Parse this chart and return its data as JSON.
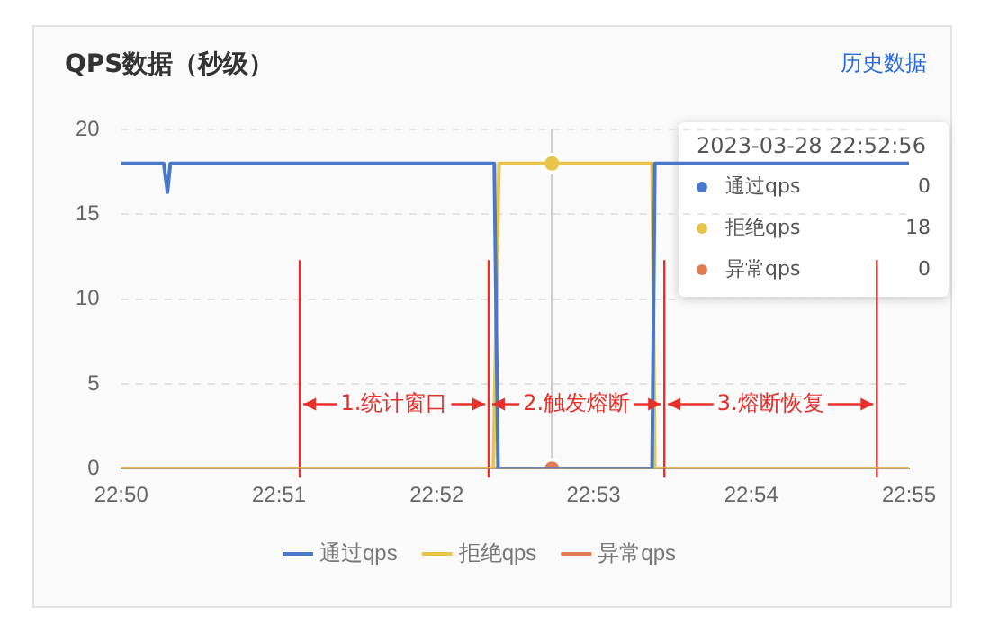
{
  "chart_data": {
    "type": "line",
    "title": "QPS数据（秒级）",
    "xlim": [
      22.8333,
      22.9167
    ],
    "xticks": [
      {
        "value": 22.8333,
        "label": "22:50"
      },
      {
        "value": 22.85,
        "label": "22:51"
      },
      {
        "value": 22.8667,
        "label": "22:52"
      },
      {
        "value": 22.8833,
        "label": "22:53"
      },
      {
        "value": 22.9,
        "label": "22:54"
      },
      {
        "value": 22.9167,
        "label": "22:55"
      }
    ],
    "ylim": [
      0,
      20
    ],
    "yticks": [
      0,
      5,
      10,
      15,
      20
    ],
    "grid": "y",
    "legend": "bottom",
    "marker": "none",
    "line_style": "solid",
    "series": [
      {
        "name": "通过qps",
        "color": "#4a78c8",
        "x": [
          22.8333,
          22.8378,
          22.8382,
          22.8385,
          22.8728,
          22.8732,
          22.8895,
          22.8898,
          22.9167
        ],
        "values": [
          18,
          18,
          16.3,
          18,
          18,
          0,
          0,
          18,
          18
        ]
      },
      {
        "name": "拒绝qps",
        "color": "#e8c54a",
        "x": [
          22.8333,
          22.8727,
          22.8733,
          22.8895,
          22.8898,
          22.9167
        ],
        "values": [
          0,
          0,
          18,
          18,
          0,
          0
        ]
      },
      {
        "name": "异常qps",
        "color": "#e07b54",
        "x": [
          22.8333,
          22.9167
        ],
        "values": [
          0,
          0
        ]
      },
      {
        "type": "scatter",
        "marker": "circle",
        "color": "#e8c54a",
        "x": [
          22.8789
        ],
        "values": [
          18
        ]
      },
      {
        "type": "scatter",
        "marker": "circle",
        "color": "#e07b54",
        "x": [
          22.8789
        ],
        "values": [
          0
        ]
      }
    ],
    "ref_lines": [
      {
        "axis": "x",
        "value": 22.8789,
        "color": "#cccccc"
      },
      {
        "axis": "x",
        "value": 22.8522,
        "color": "#e8302a"
      },
      {
        "axis": "x",
        "value": 22.8722,
        "color": "#e8302a"
      },
      {
        "axis": "x",
        "value": 22.8908,
        "color": "#e8302a"
      },
      {
        "axis": "x",
        "value": 22.9133,
        "color": "#e8302a"
      }
    ],
    "annotations": [
      "历史数据",
      "2023-03-28 22:52:56",
      "0",
      "18",
      "0",
      {
        "text": "1.统计窗口",
        "x": 22.8722,
        "y": 3.8
      },
      {
        "text": "2.触发熔断",
        "x": 22.8908,
        "y": 3.8
      },
      {
        "text": "3.熔断恢复",
        "x": 22.9133,
        "y": 3.8
      }
    ]
  }
}
